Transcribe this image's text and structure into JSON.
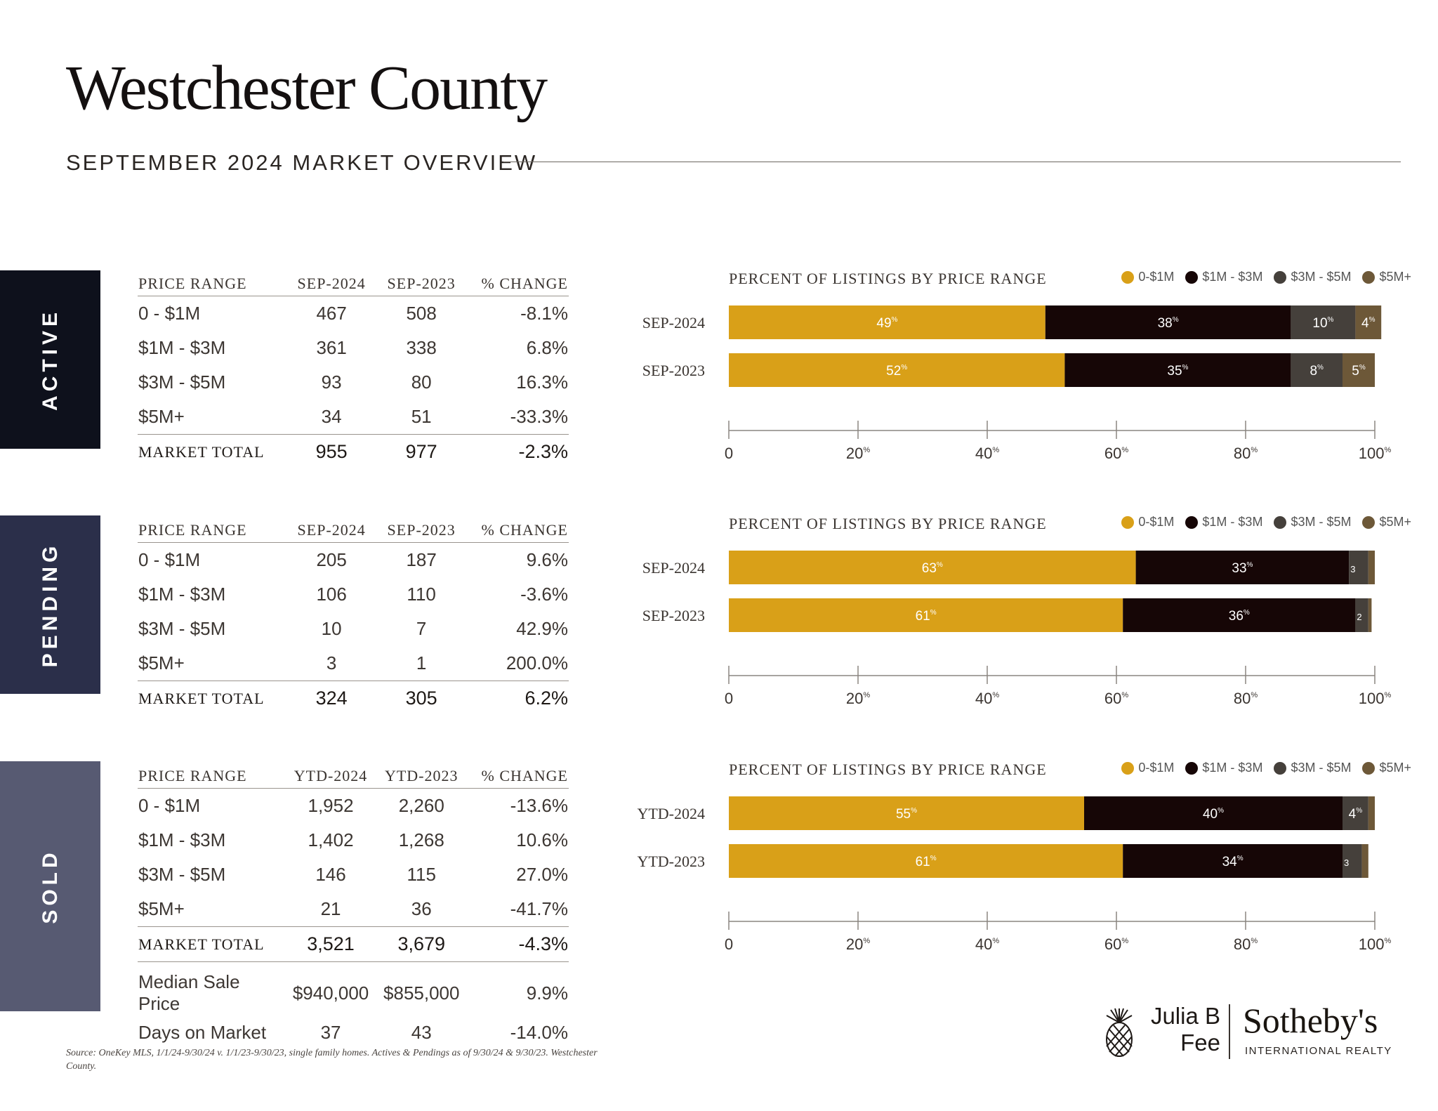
{
  "header": {
    "title": "Westchester County",
    "subtitle": "SEPTEMBER 2024 MARKET OVERVIEW"
  },
  "colors": {
    "active_tab": "#0e111c",
    "pending_tab": "#2b2f4a",
    "sold_tab": "#575a72",
    "seg_0_1m": "#d9a018",
    "seg_1_3m": "#160606",
    "seg_3_5m": "#45403b",
    "seg_5m_plus": "#6d5838"
  },
  "sections": [
    {
      "label": "ACTIVE",
      "headers": [
        "PRICE RANGE",
        "SEP-2024",
        "SEP-2023",
        "% CHANGE"
      ],
      "rows": [
        [
          "0 - $1M",
          "467",
          "508",
          "-8.1%"
        ],
        [
          "$1M - $3M",
          "361",
          "338",
          "6.8%"
        ],
        [
          "$3M - $5M",
          "93",
          "80",
          "16.3%"
        ],
        [
          "$5M+",
          "34",
          "51",
          "-33.3%"
        ]
      ],
      "total": [
        "MARKET TOTAL",
        "955",
        "977",
        "-2.3%"
      ]
    },
    {
      "label": "PENDING",
      "headers": [
        "PRICE RANGE",
        "SEP-2024",
        "SEP-2023",
        "% CHANGE"
      ],
      "rows": [
        [
          "0 - $1M",
          "205",
          "187",
          "9.6%"
        ],
        [
          "$1M - $3M",
          "106",
          "110",
          "-3.6%"
        ],
        [
          "$3M - $5M",
          "10",
          "7",
          "42.9%"
        ],
        [
          "$5M+",
          "3",
          "1",
          "200.0%"
        ]
      ],
      "total": [
        "MARKET TOTAL",
        "324",
        "305",
        "6.2%"
      ]
    },
    {
      "label": "SOLD",
      "headers": [
        "PRICE RANGE",
        "YTD-2024",
        "YTD-2023",
        "% CHANGE"
      ],
      "rows": [
        [
          "0 - $1M",
          "1,952",
          "2,260",
          "-13.6%"
        ],
        [
          "$1M - $3M",
          "1,402",
          "1,268",
          "10.6%"
        ],
        [
          "$3M - $5M",
          "146",
          "115",
          "27.0%"
        ],
        [
          "$5M+",
          "21",
          "36",
          "-41.7%"
        ]
      ],
      "total": [
        "MARKET TOTAL",
        "3,521",
        "3,679",
        "-4.3%"
      ],
      "extra": [
        [
          "Median Sale Price",
          "$940,000",
          "$855,000",
          "9.9%"
        ],
        [
          "Days on Market",
          "37",
          "43",
          "-14.0%"
        ]
      ]
    }
  ],
  "chart_data": [
    {
      "type": "bar",
      "stacked": true,
      "orientation": "horizontal",
      "title": "PERCENT OF LISTINGS BY PRICE RANGE",
      "categories": [
        "SEP-2024",
        "SEP-2023"
      ],
      "series": [
        {
          "name": "0-$1M",
          "values": [
            49,
            52
          ],
          "labels": [
            "49",
            "52"
          ]
        },
        {
          "name": "$1M - $3M",
          "values": [
            38,
            35
          ],
          "labels": [
            "38",
            "35"
          ]
        },
        {
          "name": "$3M - $5M",
          "values": [
            10,
            8
          ],
          "labels": [
            "10",
            "8"
          ]
        },
        {
          "name": "$5M+",
          "values": [
            4,
            5
          ],
          "labels": [
            "4",
            "5"
          ]
        }
      ],
      "xlim": [
        0,
        100
      ],
      "xticks": [
        "0",
        "20",
        "40",
        "60",
        "80",
        "100"
      ],
      "legend": "top-right"
    },
    {
      "type": "bar",
      "stacked": true,
      "orientation": "horizontal",
      "title": "PERCENT OF LISTINGS BY PRICE RANGE",
      "categories": [
        "SEP-2024",
        "SEP-2023"
      ],
      "series": [
        {
          "name": "0-$1M",
          "values": [
            63,
            61
          ],
          "labels": [
            "63",
            "61"
          ]
        },
        {
          "name": "$1M - $3M",
          "values": [
            33,
            36
          ],
          "labels": [
            "33",
            "36"
          ]
        },
        {
          "name": "$3M - $5M",
          "values": [
            3,
            2
          ],
          "labels": [
            "3",
            "2"
          ]
        },
        {
          "name": "$5M+",
          "values": [
            1,
            0.5
          ],
          "labels": [
            "1",
            ""
          ]
        }
      ],
      "xlim": [
        0,
        100
      ],
      "xticks": [
        "0",
        "20",
        "40",
        "60",
        "80",
        "100"
      ],
      "legend": "top-right"
    },
    {
      "type": "bar",
      "stacked": true,
      "orientation": "horizontal",
      "title": "PERCENT OF LISTINGS BY PRICE RANGE",
      "categories": [
        "YTD-2024",
        "YTD-2023"
      ],
      "series": [
        {
          "name": "0-$1M",
          "values": [
            55,
            61
          ],
          "labels": [
            "55",
            "61"
          ]
        },
        {
          "name": "$1M - $3M",
          "values": [
            40,
            34
          ],
          "labels": [
            "40",
            "34"
          ]
        },
        {
          "name": "$3M - $5M",
          "values": [
            4,
            3
          ],
          "labels": [
            "4",
            "3"
          ]
        },
        {
          "name": "$5M+",
          "values": [
            1,
            1
          ],
          "labels": [
            "1",
            "1"
          ]
        }
      ],
      "xlim": [
        0,
        100
      ],
      "xticks": [
        "0",
        "20",
        "40",
        "60",
        "80",
        "100"
      ],
      "legend": "top-right"
    }
  ],
  "source_note": "Source: OneKey MLS, 1/1/24-9/30/24 v. 1/1/23-9/30/23, single family homes. Actives & Pendings as of 9/30/24 & 9/30/23. Westchester County.",
  "logo": {
    "name_line1": "Julia B",
    "name_line2": "Fee",
    "brand": "Sotheby's",
    "brand_sub": "INTERNATIONAL REALTY",
    "icon": "pineapple-icon"
  }
}
